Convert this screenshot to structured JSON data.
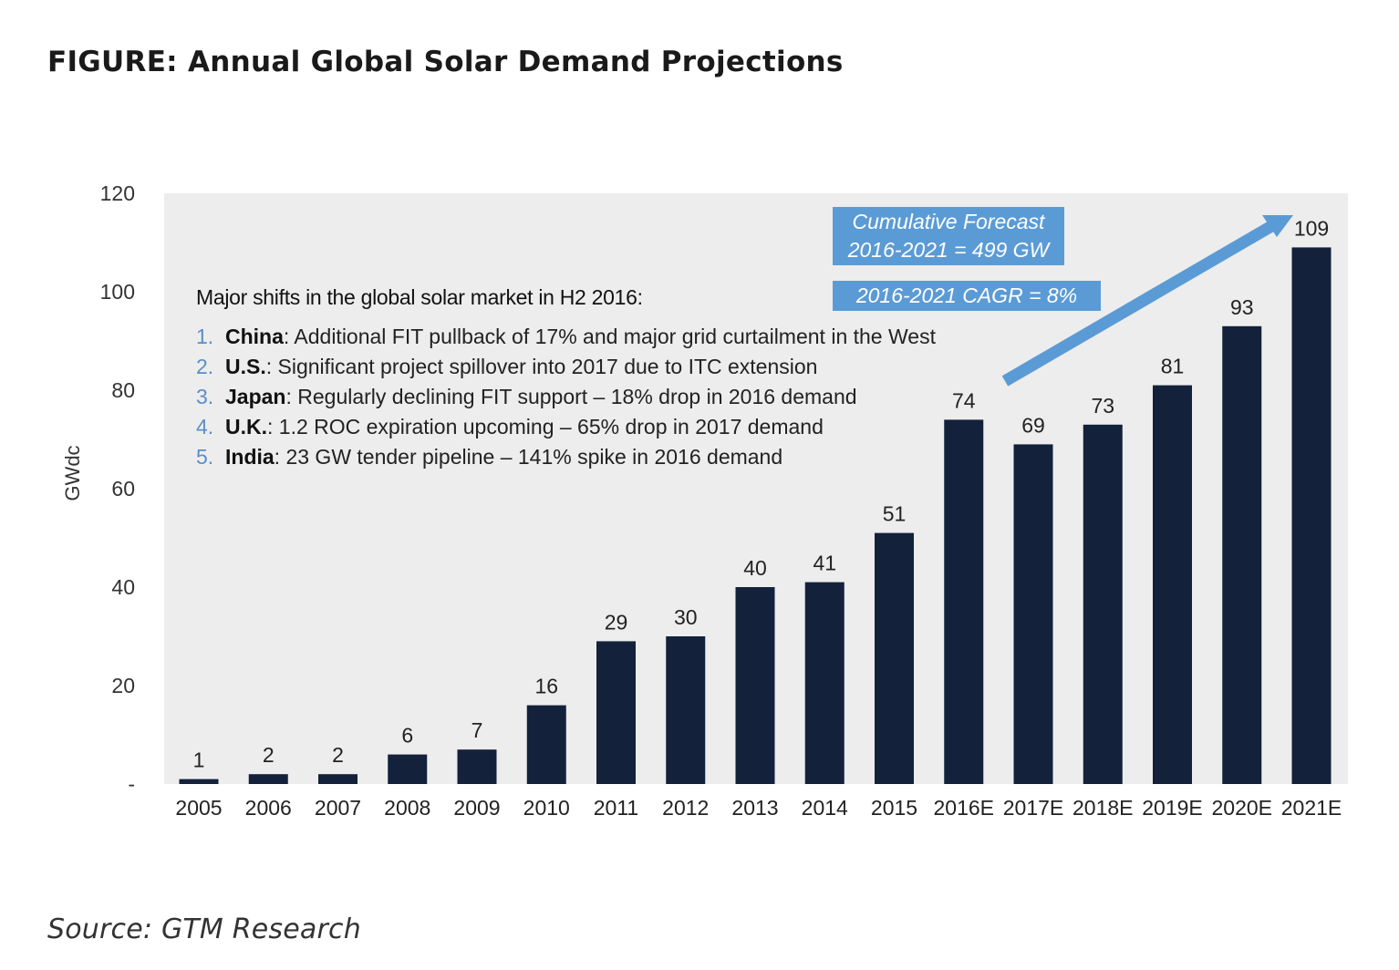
{
  "figure_title": "FIGURE: Annual Global Solar Demand Projections",
  "source": "Source: GTM Research",
  "colors": {
    "bar": "#13213b",
    "plot_background": "#ededed",
    "callout": "#5b9bd5",
    "arrow": "#5b9bd5",
    "list_number": "#5b8ec9"
  },
  "annotation": {
    "title": "Major shifts in the global solar market in H2 2016:",
    "items": [
      {
        "num": "1.",
        "key": "China",
        "text": ": Additional FIT pullback of 17% and major grid curtailment in the West"
      },
      {
        "num": "2.",
        "key": "U.S.",
        "text": ": Significant project spillover into 2017 due to ITC extension"
      },
      {
        "num": "3.",
        "key": "Japan",
        "text": ": Regularly declining FIT support – 18% drop in 2016 demand"
      },
      {
        "num": "4.",
        "key": "U.K.",
        "text": ": 1.2 ROC expiration upcoming – 65% drop in 2017 demand"
      },
      {
        "num": "5.",
        "key": "India",
        "text": ": 23 GW tender pipeline – 141% spike in 2016 demand"
      }
    ]
  },
  "callouts": {
    "forecast_line1": "Cumulative Forecast",
    "forecast_line2": "2016-2021 = 499 GW",
    "cagr": "2016-2021 CAGR = 8%"
  },
  "chart_data": {
    "type": "bar",
    "categories": [
      "2005",
      "2006",
      "2007",
      "2008",
      "2009",
      "2010",
      "2011",
      "2012",
      "2013",
      "2014",
      "2015",
      "2016E",
      "2017E",
      "2018E",
      "2019E",
      "2020E",
      "2021E"
    ],
    "values": [
      1,
      2,
      2,
      6,
      7,
      16,
      29,
      30,
      40,
      41,
      51,
      74,
      69,
      73,
      81,
      93,
      109
    ],
    "value_labels": [
      "1",
      "2",
      "2",
      "6",
      "7",
      "16",
      "29",
      "30",
      "40",
      "41",
      "51",
      "74",
      "69",
      "73",
      "81",
      "93",
      "109"
    ],
    "ylabel": "GWdc",
    "ylim": [
      0,
      120
    ],
    "yticks": [
      {
        "value": 0,
        "label": "-"
      },
      {
        "value": 20,
        "label": "20"
      },
      {
        "value": 40,
        "label": "40"
      },
      {
        "value": 60,
        "label": "60"
      },
      {
        "value": 80,
        "label": "80"
      },
      {
        "value": 100,
        "label": "100"
      },
      {
        "value": 120,
        "label": "120"
      }
    ],
    "grid": false,
    "legend": "none"
  }
}
